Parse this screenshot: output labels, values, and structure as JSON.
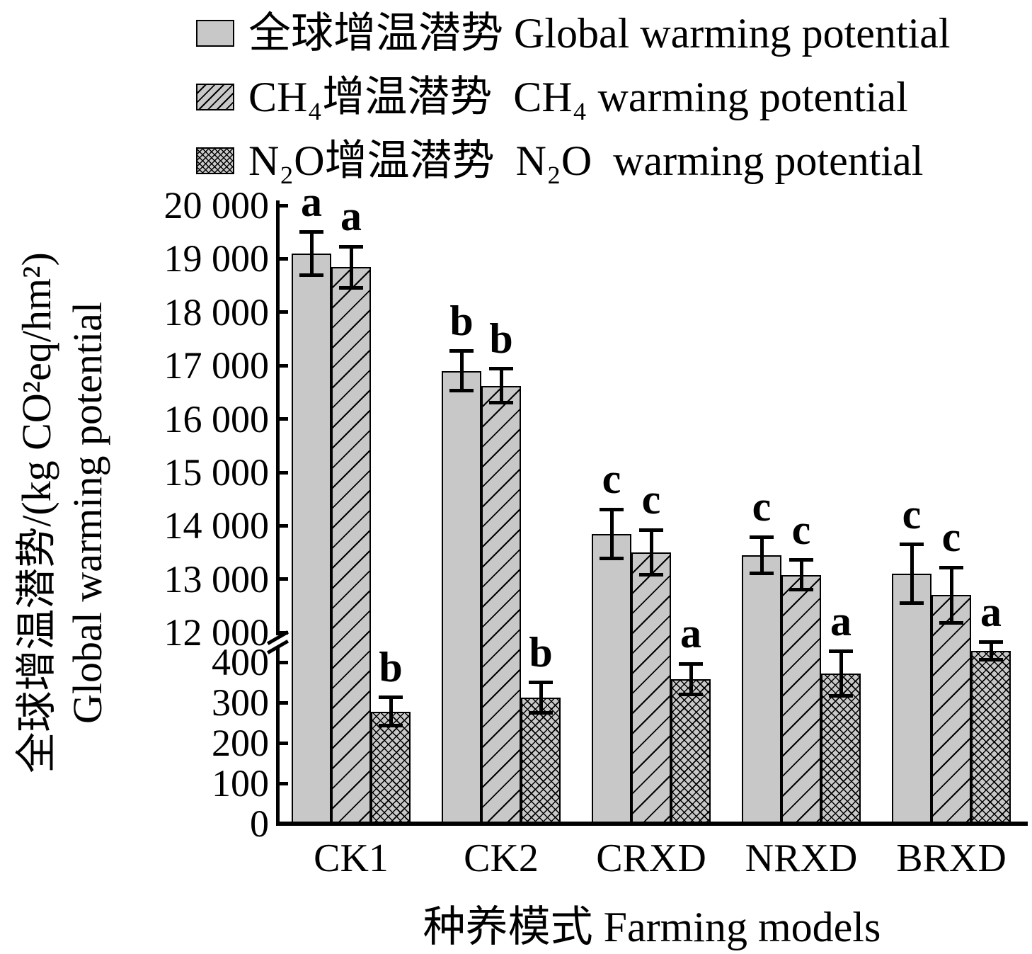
{
  "legend": {
    "items": [
      {
        "label": "全球增温潜势 Global warming potential",
        "pattern": "solid",
        "series_key": "gwp"
      },
      {
        "label": "CH₄增温潜势  CH₄ warming potential",
        "pattern": "diag",
        "series_key": "ch4"
      },
      {
        "label": "N₂O增温潜势  N₂O  warming potential",
        "pattern": "cross",
        "series_key": "n2o"
      }
    ]
  },
  "axes": {
    "y_title_zh": "全球增温潜势/(kg CO²eq/hm²)",
    "y_title_en": "Global warming potential",
    "x_title": "种养模式 Farming models",
    "upper_ticks": [
      {
        "value": 20000,
        "label": "20 000"
      },
      {
        "value": 19000,
        "label": "19 000"
      },
      {
        "value": 18000,
        "label": "18 000"
      },
      {
        "value": 17000,
        "label": "17 000"
      },
      {
        "value": 16000,
        "label": "16 000"
      },
      {
        "value": 15000,
        "label": "15 000"
      },
      {
        "value": 14000,
        "label": "14 000"
      },
      {
        "value": 13000,
        "label": "13 000"
      },
      {
        "value": 12000,
        "label": "12 000"
      }
    ],
    "lower_ticks": [
      {
        "value": 400,
        "label": "400"
      },
      {
        "value": 300,
        "label": "300"
      },
      {
        "value": 200,
        "label": "200"
      },
      {
        "value": 100,
        "label": "100"
      },
      {
        "value": 0,
        "label": "0"
      }
    ],
    "has_axis_break": true
  },
  "chart_data": {
    "type": "bar",
    "title": "",
    "xlabel": "种养模式 Farming models",
    "ylabel": "全球增温潜势/(kg CO²eq/hm²) Global warming potential",
    "grid": false,
    "legend_position": "top-left",
    "broken_y_axis": {
      "lower_range": [
        0,
        400
      ],
      "upper_range": [
        12000,
        20000
      ]
    },
    "categories": [
      "CK1",
      "CK2",
      "CRXD",
      "NRXD",
      "BRXD"
    ],
    "series": [
      {
        "key": "gwp",
        "name": "全球增温潜势 Global warming potential",
        "pattern": "solid",
        "axis_segment": "upper",
        "values": [
          19100,
          16900,
          13850,
          13450,
          13100
        ],
        "errors": [
          400,
          370,
          460,
          340,
          550
        ],
        "sig_letters": [
          "a",
          "b",
          "c",
          "c",
          "c"
        ]
      },
      {
        "key": "ch4",
        "name": "CH₄增温潜势 CH₄ warming potential",
        "pattern": "diag",
        "axis_segment": "upper",
        "values": [
          18840,
          16620,
          13500,
          13080,
          12700
        ],
        "errors": [
          390,
          320,
          420,
          280,
          520
        ],
        "sig_letters": [
          "a",
          "b",
          "c",
          "c",
          "c"
        ]
      },
      {
        "key": "n2o",
        "name": "N₂O增温潜势 N₂O warming potential",
        "pattern": "cross",
        "axis_segment": "lower",
        "values": [
          278,
          312,
          358,
          372,
          428
        ],
        "errors": [
          35,
          38,
          38,
          55,
          22
        ],
        "sig_letters": [
          "b",
          "b",
          "a",
          "a",
          "a"
        ]
      }
    ]
  },
  "colors": {
    "bar_fill": "#c8c8c8",
    "ink": "#000000",
    "background": "#ffffff"
  }
}
